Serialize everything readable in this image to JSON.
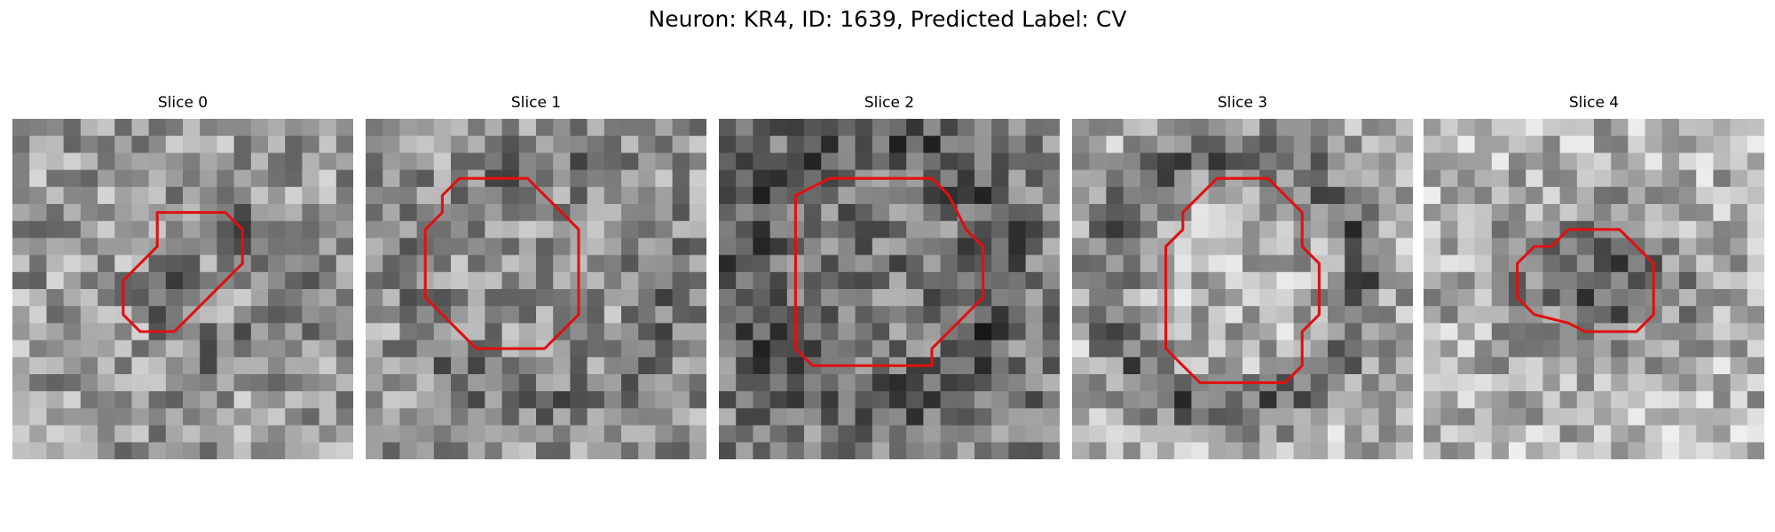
{
  "figure": {
    "title": "Neuron: KR4, ID: 1639, Predicted Label: CV"
  },
  "panels": [
    {
      "title": "Slice 0",
      "seed": 11,
      "base": 155,
      "ring": {
        "cx": 13.0,
        "cy": 10.0,
        "r": 3.6,
        "dark": -55
      },
      "contour": [
        [
          8.5,
          6.5
        ],
        [
          8.5,
          5.5
        ],
        [
          9.5,
          5.5
        ],
        [
          10.5,
          5.5
        ],
        [
          11.5,
          5.5
        ],
        [
          12.5,
          5.5
        ],
        [
          13.5,
          6.5
        ],
        [
          13.5,
          8.5
        ],
        [
          12.5,
          9.5
        ],
        [
          11.5,
          10.5
        ],
        [
          10.5,
          11.5
        ],
        [
          9.5,
          12.5
        ],
        [
          7.5,
          12.5
        ],
        [
          6.5,
          11.5
        ],
        [
          6.5,
          9.5
        ],
        [
          7.5,
          8.5
        ],
        [
          8.5,
          7.5
        ]
      ]
    },
    {
      "title": "Slice 1",
      "seed": 23,
      "base": 150,
      "ring": {
        "cx": 10.5,
        "cy": 9.5,
        "r": 7.0,
        "dark": -35
      },
      "contour": [
        [
          4.5,
          4.5
        ],
        [
          5.5,
          3.5
        ],
        [
          9.5,
          3.5
        ],
        [
          10.5,
          4.5
        ],
        [
          11.5,
          5.5
        ],
        [
          12.5,
          6.5
        ],
        [
          12.5,
          11.5
        ],
        [
          11.5,
          12.5
        ],
        [
          10.5,
          13.5
        ],
        [
          9.5,
          13.5
        ],
        [
          6.5,
          13.5
        ],
        [
          5.5,
          12.5
        ],
        [
          4.5,
          11.5
        ],
        [
          3.5,
          10.5
        ],
        [
          3.5,
          6.5
        ],
        [
          4.5,
          5.5
        ]
      ]
    },
    {
      "title": "Slice 2",
      "seed": 37,
      "base": 120,
      "ring": {
        "cx": 9.0,
        "cy": 9.0,
        "r": 7.5,
        "dark": -40
      },
      "contour": [
        [
          4.5,
          4.5
        ],
        [
          6.5,
          3.5
        ],
        [
          12.5,
          3.5
        ],
        [
          13.5,
          4.5
        ],
        [
          14.5,
          6.5
        ],
        [
          15.5,
          7.5
        ],
        [
          15.5,
          10.5
        ],
        [
          14.5,
          11.5
        ],
        [
          13.5,
          12.5
        ],
        [
          12.5,
          13.5
        ],
        [
          12.5,
          14.5
        ],
        [
          5.5,
          14.5
        ],
        [
          4.5,
          13.5
        ],
        [
          4.5,
          5.5
        ]
      ]
    },
    {
      "title": "Slice 3",
      "seed": 53,
      "base": 175,
      "ring": {
        "cx": 9.5,
        "cy": 9.5,
        "r": 7.5,
        "dark": -80
      },
      "contour": [
        [
          6.5,
          5.5
        ],
        [
          8.5,
          3.5
        ],
        [
          11.5,
          3.5
        ],
        [
          12.5,
          4.5
        ],
        [
          13.5,
          5.5
        ],
        [
          13.5,
          7.5
        ],
        [
          14.5,
          8.5
        ],
        [
          14.5,
          11.5
        ],
        [
          13.5,
          12.5
        ],
        [
          13.5,
          14.5
        ],
        [
          12.5,
          15.5
        ],
        [
          7.5,
          15.5
        ],
        [
          6.5,
          14.5
        ],
        [
          5.5,
          13.5
        ],
        [
          5.5,
          11.5
        ],
        [
          5.5,
          7.5
        ],
        [
          6.5,
          6.5
        ]
      ]
    },
    {
      "title": "Slice 4",
      "seed": 71,
      "base": 180,
      "ring": {
        "cx": 11.5,
        "cy": 10.0,
        "r": 0,
        "dark": 0
      },
      "blob": {
        "cx": 10.5,
        "cy": 9.5,
        "rx": 6.0,
        "ry": 4.0,
        "dark": -90
      },
      "contour": [
        [
          6.5,
          7.5
        ],
        [
          7.5,
          7.5
        ],
        [
          8.5,
          6.5
        ],
        [
          11.5,
          6.5
        ],
        [
          12.5,
          7.5
        ],
        [
          13.5,
          8.5
        ],
        [
          13.5,
          11.5
        ],
        [
          12.5,
          12.5
        ],
        [
          9.5,
          12.5
        ],
        [
          8.5,
          12.0
        ],
        [
          6.5,
          11.5
        ],
        [
          5.5,
          10.5
        ],
        [
          5.5,
          8.5
        ]
      ]
    }
  ],
  "colors": {
    "contour": "#e01010",
    "background": "#ffffff"
  }
}
